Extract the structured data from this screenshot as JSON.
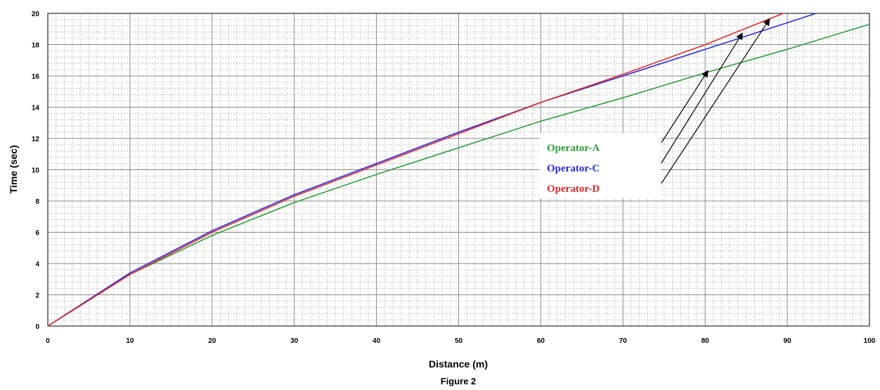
{
  "chart_data": {
    "type": "line",
    "title": "",
    "caption": "Figure 2",
    "xlabel": "Distance (m)",
    "ylabel": "Time (sec)",
    "xlim": [
      0,
      100
    ],
    "ylim": [
      0,
      20
    ],
    "x_ticks": [
      0,
      10,
      20,
      30,
      40,
      50,
      60,
      70,
      80,
      90,
      100
    ],
    "y_ticks": [
      0,
      2,
      4,
      6,
      8,
      10,
      12,
      14,
      16,
      18,
      20
    ],
    "grid": true,
    "series": [
      {
        "name": "Operator-A",
        "color": "#2e9e3a",
        "x": [
          0,
          10,
          20,
          30,
          40,
          50,
          60,
          70,
          80,
          90,
          100
        ],
        "y": [
          0,
          3.3,
          5.8,
          7.9,
          9.7,
          11.4,
          13.1,
          14.6,
          16.2,
          17.7,
          19.3
        ]
      },
      {
        "name": "Operator-C",
        "color": "#2a2ae0",
        "x": [
          0,
          10,
          20,
          30,
          40,
          50,
          60,
          70,
          80,
          90,
          93.5
        ],
        "y": [
          0,
          3.4,
          6.1,
          8.4,
          10.4,
          12.4,
          14.3,
          16.0,
          17.7,
          19.4,
          20.0
        ]
      },
      {
        "name": "Operator-D",
        "color": "#e02a2a",
        "x": [
          0,
          10,
          20,
          30,
          40,
          50,
          60,
          70,
          80,
          89.5
        ],
        "y": [
          0,
          3.3,
          6.0,
          8.3,
          10.3,
          12.3,
          14.3,
          16.1,
          18.0,
          20.0
        ]
      }
    ],
    "legend": "inside-right"
  }
}
